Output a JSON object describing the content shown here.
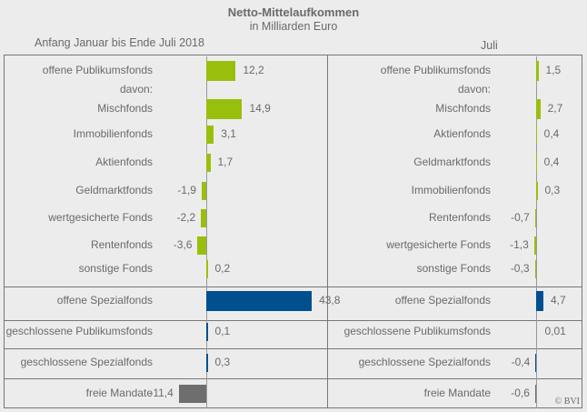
{
  "colors": {
    "green": "#99bf0d",
    "blue": "#00508f",
    "gray": "#6e6e6e"
  },
  "chart_data": {
    "type": "bar",
    "title": "Netto-Mittelaufkommen",
    "subtitle": "in Milliarden Euro",
    "copyright": "© BVI",
    "panels": [
      {
        "heading": "Anfang Januar  bis Ende Juli 2018",
        "rows": [
          {
            "label": "offene Publikumsfonds",
            "value": 12.2,
            "text": "12,2",
            "color": "green"
          },
          {
            "label": "davon:",
            "value": null,
            "text": ""
          },
          {
            "label": "Mischfonds",
            "value": 14.9,
            "text": "14,9",
            "color": "green"
          },
          {
            "label": "Immobilienfonds",
            "value": 3.1,
            "text": "3,1",
            "color": "green"
          },
          {
            "label": "Aktienfonds",
            "value": 1.7,
            "text": "1,7",
            "color": "green"
          },
          {
            "label": "Geldmarktfonds",
            "value": -1.9,
            "text": "-1,9",
            "color": "green"
          },
          {
            "label": "wertgesicherte Fonds",
            "value": -2.2,
            "text": "-2,2",
            "color": "green"
          },
          {
            "label": "Rentenfonds",
            "value": -3.6,
            "text": "-3,6",
            "color": "green"
          },
          {
            "label": "sonstige Fonds",
            "value": 0.2,
            "text": "0,2",
            "color": "green"
          },
          {
            "label": "offene Spezialfonds",
            "value": 43.8,
            "text": "43,8",
            "color": "blue"
          },
          {
            "label": "geschlossene Publikumsfonds",
            "value": 0.1,
            "text": "0,1",
            "color": "blue"
          },
          {
            "label": "geschlossene Spezialfonds",
            "value": 0.3,
            "text": "0,3",
            "color": "blue"
          },
          {
            "label": "freie Mandate",
            "value": -11.4,
            "text": "-11,4",
            "color": "gray"
          }
        ]
      },
      {
        "heading": "Juli",
        "rows": [
          {
            "label": "offene Publikumsfonds",
            "value": 1.5,
            "text": "1,5",
            "color": "green"
          },
          {
            "label": "davon:",
            "value": null,
            "text": ""
          },
          {
            "label": "Mischfonds",
            "value": 2.7,
            "text": "2,7",
            "color": "green"
          },
          {
            "label": "Aktienfonds",
            "value": 0.4,
            "text": "0,4",
            "color": "green"
          },
          {
            "label": "Geldmarktfonds",
            "value": 0.4,
            "text": "0,4",
            "color": "green"
          },
          {
            "label": "Immobilienfonds",
            "value": 0.3,
            "text": "0,3",
            "color": "green"
          },
          {
            "label": "Rentenfonds",
            "value": -0.7,
            "text": "-0,7",
            "color": "green"
          },
          {
            "label": "wertgesicherte Fonds",
            "value": -1.3,
            "text": "-1,3",
            "color": "green"
          },
          {
            "label": "sonstige Fonds",
            "value": -0.3,
            "text": "-0,3",
            "color": "green"
          },
          {
            "label": "offene Spezialfonds",
            "value": 4.7,
            "text": "4,7",
            "color": "blue"
          },
          {
            "label": "geschlossene Publikumsfonds",
            "value": 0.01,
            "text": "0,01",
            "color": "blue"
          },
          {
            "label": "geschlossene Spezialfonds",
            "value": -0.4,
            "text": "-0,4",
            "color": "blue"
          },
          {
            "label": "freie Mandate",
            "value": -0.6,
            "text": "-0,6",
            "color": "gray"
          }
        ]
      }
    ]
  }
}
